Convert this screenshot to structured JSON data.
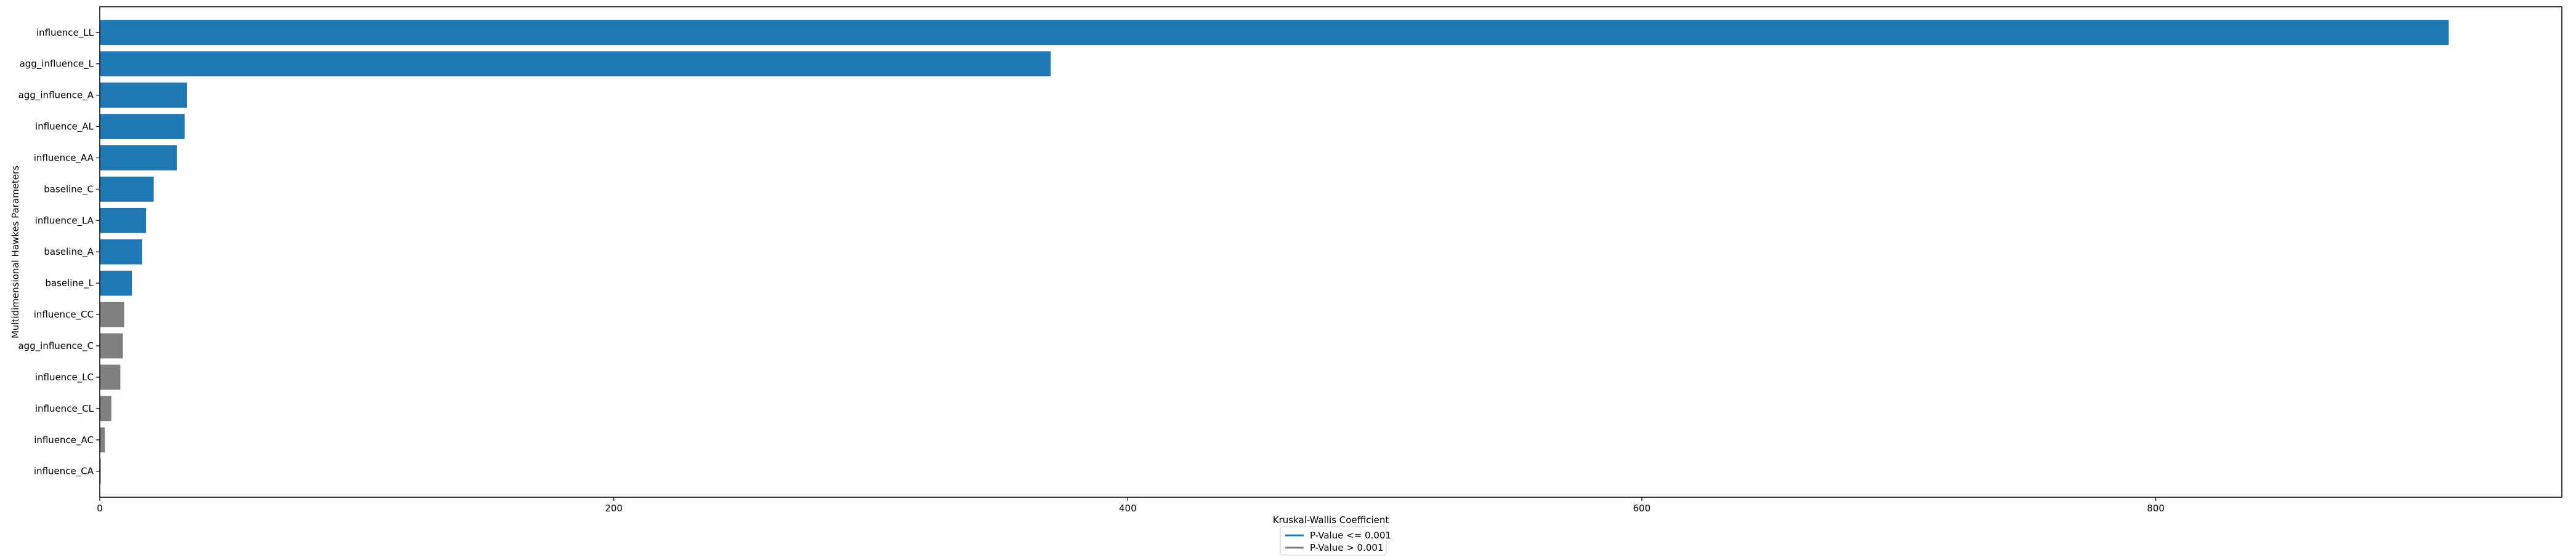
{
  "chart_data": {
    "type": "bar",
    "orientation": "horizontal",
    "xlabel": "Kruskal-Wallis Coefficient",
    "ylabel": "Multidimensional Hawkes Parameters",
    "xlim": [
      0,
      958
    ],
    "xticks": [
      0,
      200,
      400,
      600,
      800
    ],
    "categories": [
      "influence_LL",
      "agg_influence_L",
      "agg_influence_A",
      "influence_AL",
      "influence_AA",
      "baseline_C",
      "influence_LA",
      "baseline_A",
      "baseline_L",
      "influence_CC",
      "agg_influence_C",
      "influence_LC",
      "influence_CL",
      "influence_AC",
      "influence_CA"
    ],
    "values": [
      914,
      370,
      34,
      33,
      30,
      21,
      18,
      16.5,
      12.5,
      9.5,
      9,
      8,
      4.5,
      2,
      0.4
    ],
    "significance": [
      "low",
      "low",
      "low",
      "low",
      "low",
      "low",
      "low",
      "low",
      "low",
      "high",
      "high",
      "high",
      "high",
      "high",
      "high"
    ],
    "colors": {
      "low": "#1f77b4",
      "high": "#7f7f7f"
    },
    "legend": {
      "title": "Kruskal-Wallis Coefficient",
      "placement": "lower-center",
      "entries": [
        {
          "key": "low",
          "label": "P-Value <= 0.001"
        },
        {
          "key": "high",
          "label": "P-Value > 0.001"
        }
      ]
    },
    "grid": false
  }
}
